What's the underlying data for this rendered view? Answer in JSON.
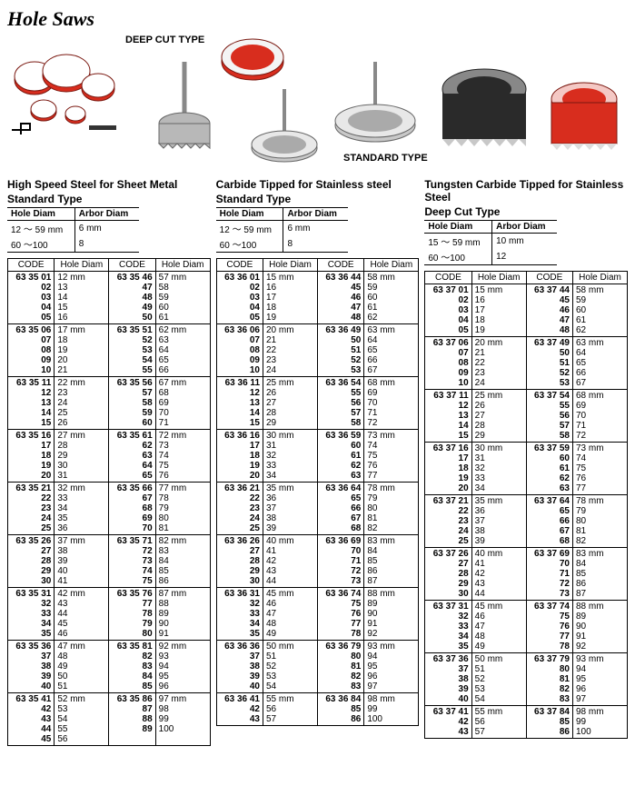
{
  "page_title": "Hole Saws",
  "header_labels": {
    "deep_cut": "DEEP CUT TYPE",
    "standard": "STANDARD TYPE"
  },
  "sections": [
    {
      "title_line1": "High Speed Steel for Sheet Metal",
      "title_line2": "Standard Type",
      "arbor": {
        "headers": [
          "Hole Diam",
          "Arbor Diam"
        ],
        "rows": [
          [
            "12 ～ 59 mm",
            "6 mm"
          ],
          [
            "60 ～100",
            "8"
          ]
        ]
      },
      "code_headers": [
        "CODE",
        "Hole Diam",
        "CODE",
        "Hole Diam"
      ],
      "groups": [
        {
          "lcodes": "63 35 01\n02\n03\n04\n05",
          "ldiams": "12 mm\n13\n14\n15\n16",
          "rcodes": "63 35 46\n47\n48\n49\n50",
          "rdiams": "57 mm\n58\n59\n60\n61"
        },
        {
          "lcodes": "63 35 06\n07\n08\n09\n10",
          "ldiams": "17 mm\n18\n19\n20\n21",
          "rcodes": "63 35 51\n52\n53\n54\n55",
          "rdiams": "62 mm\n63\n64\n65\n66"
        },
        {
          "lcodes": "63 35 11\n12\n13\n14\n15",
          "ldiams": "22 mm\n23\n24\n25\n26",
          "rcodes": "63 35 56\n57\n58\n59\n60",
          "rdiams": "67 mm\n68\n69\n70\n71"
        },
        {
          "lcodes": "63 35 16\n17\n18\n19\n20",
          "ldiams": "27 mm\n28\n29\n30\n31",
          "rcodes": "63 35 61\n62\n63\n64\n65",
          "rdiams": "72 mm\n73\n74\n75\n76"
        },
        {
          "lcodes": "63 35 21\n22\n23\n24\n25",
          "ldiams": "32 mm\n33\n34\n35\n36",
          "rcodes": "63 35 66\n67\n68\n69\n70",
          "rdiams": "77 mm\n78\n79\n80\n81"
        },
        {
          "lcodes": "63 35 26\n27\n28\n29\n30",
          "ldiams": "37 mm\n38\n39\n40\n41",
          "rcodes": "63 35 71\n72\n73\n74\n75",
          "rdiams": "82 mm\n83\n84\n85\n86"
        },
        {
          "lcodes": "63 35 31\n32\n33\n34\n35",
          "ldiams": "42 mm\n43\n44\n45\n46",
          "rcodes": "63 35 76\n77\n78\n79\n80",
          "rdiams": "87 mm\n88\n89\n90\n91"
        },
        {
          "lcodes": "63 35 36\n37\n38\n39\n40",
          "ldiams": "47 mm\n48\n49\n50\n51",
          "rcodes": "63 35 81\n82\n83\n84\n85",
          "rdiams": "92 mm\n93\n94\n95\n96"
        },
        {
          "lcodes": "63 35 41\n42\n43\n44\n45",
          "ldiams": "52 mm\n53\n54\n55\n56",
          "rcodes": "63 35 86\n87\n88\n89",
          "rdiams": "97 mm\n98\n99\n100"
        }
      ]
    },
    {
      "title_line1": "Carbide Tipped for Stainless steel",
      "title_line2": "Standard Type",
      "arbor": {
        "headers": [
          "Hole Diam",
          "Arbor Diam"
        ],
        "rows": [
          [
            "12 ～ 59 mm",
            "6 mm"
          ],
          [
            "60 ～100",
            "8"
          ]
        ]
      },
      "code_headers": [
        "CODE",
        "Hole Diam",
        "CODE",
        "Hole Diam"
      ],
      "groups": [
        {
          "lcodes": "63 36 01\n02\n03\n04\n05",
          "ldiams": "15 mm\n16\n17\n18\n19",
          "rcodes": "63 36 44\n45\n46\n47\n48",
          "rdiams": "58 mm\n59\n60\n61\n62"
        },
        {
          "lcodes": "63 36 06\n07\n08\n09\n10",
          "ldiams": "20 mm\n21\n22\n23\n24",
          "rcodes": "63 36 49\n50\n51\n52\n53",
          "rdiams": "63 mm\n64\n65\n66\n67"
        },
        {
          "lcodes": "63 36 11\n12\n13\n14\n15",
          "ldiams": "25 mm\n26\n27\n28\n29",
          "rcodes": "63 36 54\n55\n56\n57\n58",
          "rdiams": "68 mm\n69\n70\n71\n72"
        },
        {
          "lcodes": "63 36 16\n17\n18\n19\n20",
          "ldiams": "30 mm\n31\n32\n33\n34",
          "rcodes": "63 36 59\n60\n61\n62\n63",
          "rdiams": "73 mm\n74\n75\n76\n77"
        },
        {
          "lcodes": "63 36 21\n22\n23\n24\n25",
          "ldiams": "35 mm\n36\n37\n38\n39",
          "rcodes": "63 36 64\n65\n66\n67\n68",
          "rdiams": "78 mm\n79\n80\n81\n82"
        },
        {
          "lcodes": "63 36 26\n27\n28\n29\n30",
          "ldiams": "40 mm\n41\n42\n43\n44",
          "rcodes": "63 36 69\n70\n71\n72\n73",
          "rdiams": "83 mm\n84\n85\n86\n87"
        },
        {
          "lcodes": "63 36 31\n32\n33\n34\n35",
          "ldiams": "45 mm\n46\n47\n48\n49",
          "rcodes": "63 36 74\n75\n76\n77\n78",
          "rdiams": "88 mm\n89\n90\n91\n92"
        },
        {
          "lcodes": "63 36 36\n37\n38\n39\n40",
          "ldiams": "50 mm\n51\n52\n53\n54",
          "rcodes": "63 36 79\n80\n81\n82\n83",
          "rdiams": "93 mm\n94\n95\n96\n97"
        },
        {
          "lcodes": "63 36 41\n42\n43",
          "ldiams": "55 mm\n56\n57",
          "rcodes": "63 36 84\n85\n86",
          "rdiams": "98 mm\n99\n100"
        }
      ]
    },
    {
      "title_line1": "Tungsten Carbide Tipped for Stainless Steel",
      "title_line2": "Deep Cut Type",
      "arbor": {
        "headers": [
          "Hole Diam",
          "Arbor Diam"
        ],
        "rows": [
          [
            "15 ～ 59 mm",
            "10 mm"
          ],
          [
            "60 ～100",
            "12"
          ]
        ]
      },
      "code_headers": [
        "CODE",
        "Hole Diam",
        "CODE",
        "Hole Diam"
      ],
      "groups": [
        {
          "lcodes": "63 37 01\n02\n03\n04\n05",
          "ldiams": "15 mm\n16\n17\n18\n19",
          "rcodes": "63 37 44\n45\n46\n47\n48",
          "rdiams": "58 mm\n59\n60\n61\n62"
        },
        {
          "lcodes": "63 37 06\n07\n08\n09\n10",
          "ldiams": "20 mm\n21\n22\n23\n24",
          "rcodes": "63 37 49\n50\n51\n52\n53",
          "rdiams": "63 mm\n64\n65\n66\n67"
        },
        {
          "lcodes": "63 37 11\n12\n13\n14\n15",
          "ldiams": "25 mm\n26\n27\n28\n29",
          "rcodes": "63 37 54\n55\n56\n57\n58",
          "rdiams": "68 mm\n69\n70\n71\n72"
        },
        {
          "lcodes": "63 37 16\n17\n18\n19\n20",
          "ldiams": "30 mm\n31\n32\n33\n34",
          "rcodes": "63 37 59\n60\n61\n62\n63",
          "rdiams": "73 mm\n74\n75\n76\n77"
        },
        {
          "lcodes": "63 37 21\n22\n23\n24\n25",
          "ldiams": "35 mm\n36\n37\n38\n39",
          "rcodes": "63 37 64\n65\n66\n67\n68",
          "rdiams": "78 mm\n79\n80\n81\n82"
        },
        {
          "lcodes": "63 37 26\n27\n28\n29\n30",
          "ldiams": "40 mm\n41\n42\n43\n44",
          "rcodes": "63 37 69\n70\n71\n72\n73",
          "rdiams": "83 mm\n84\n85\n86\n87"
        },
        {
          "lcodes": "63 37 31\n32\n33\n34\n35",
          "ldiams": "45 mm\n46\n47\n48\n49",
          "rcodes": "63 37 74\n75\n76\n77\n78",
          "rdiams": "88 mm\n89\n90\n91\n92"
        },
        {
          "lcodes": "63 37 36\n37\n38\n39\n40",
          "ldiams": "50 mm\n51\n52\n53\n54",
          "rcodes": "63 37 79\n80\n81\n82\n83",
          "rdiams": "93 mm\n94\n95\n96\n97"
        },
        {
          "lcodes": "63 37 41\n42\n43",
          "ldiams": "55 mm\n56\n57",
          "rcodes": "63 37 84\n85\n86",
          "rdiams": "98 mm\n99\n100"
        }
      ]
    }
  ],
  "colors": {
    "saw_red": "#d82d1e",
    "saw_dark": "#2a2a2a",
    "saw_metal": "#b8b8b8"
  }
}
